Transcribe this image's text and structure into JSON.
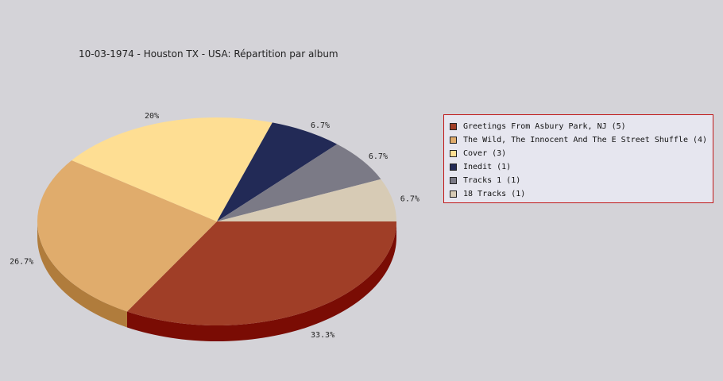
{
  "chart_data": {
    "type": "pie",
    "title": "10-03-1974 - Houston TX - USA:  Répartition par album",
    "slices": [
      {
        "label": "Greetings From Asbury Park, NJ (5)",
        "value": 5,
        "percent_label": "33.3%",
        "color": "#a03e27",
        "side_color": "#7a0c04"
      },
      {
        "label": "The Wild, The Innocent And The E Street Shuffle (4)",
        "value": 4,
        "percent_label": "26.7%",
        "color": "#e0ac6c",
        "side_color": "#b07c3c"
      },
      {
        "label": "Cover (3)",
        "value": 3,
        "percent_label": "20%",
        "color": "#fede93",
        "side_color": "#c8a860"
      },
      {
        "label": "Inedit (1)",
        "value": 1,
        "percent_label": "6.7%",
        "color": "#222a56",
        "side_color": "#10152e"
      },
      {
        "label": "Tracks 1 (1)",
        "value": 1,
        "percent_label": "6.7%",
        "color": "#7b7a86",
        "side_color": "#55545e"
      },
      {
        "label": "18 Tracks (1)",
        "value": 1,
        "percent_label": "6.7%",
        "color": "#d7cbb5",
        "side_color": "#a89c86"
      }
    ],
    "legend_position": "right"
  }
}
